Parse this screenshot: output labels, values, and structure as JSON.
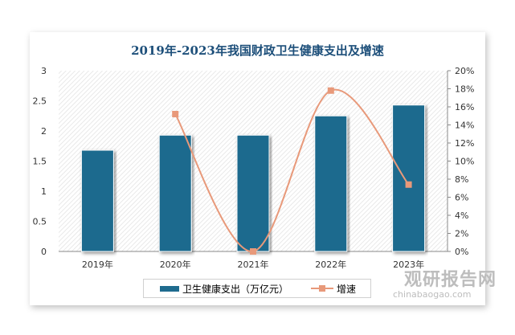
{
  "chart_data": {
    "type": "bar+line",
    "title": "2019年-2023年我国财政卫生健康支出及增速",
    "categories": [
      "2019年",
      "2020年",
      "2021年",
      "2022年",
      "2023年"
    ],
    "series": [
      {
        "name": "卫生健康支出（万亿元）",
        "type": "bar",
        "axis": "left",
        "values": [
          1.68,
          1.93,
          1.93,
          2.25,
          2.43
        ],
        "color": "#1f6b8e"
      },
      {
        "name": "增速",
        "type": "line",
        "axis": "right",
        "values": [
          null,
          15.2,
          0.0,
          17.8,
          7.4
        ],
        "color": "#e8997a"
      }
    ],
    "ylim_left": [
      0,
      3
    ],
    "yticks_left": [
      "0",
      "0.5",
      "1",
      "1.5",
      "2",
      "2.5",
      "3"
    ],
    "ylim_right": [
      0,
      20
    ],
    "yticks_right": [
      "0%",
      "2%",
      "4%",
      "6%",
      "8%",
      "10%",
      "12%",
      "14%",
      "16%",
      "18%",
      "20%"
    ],
    "legend": "bottom",
    "grid": false
  },
  "watermark": {
    "cn": "观研报告网",
    "en": "chinabaogao.com"
  }
}
